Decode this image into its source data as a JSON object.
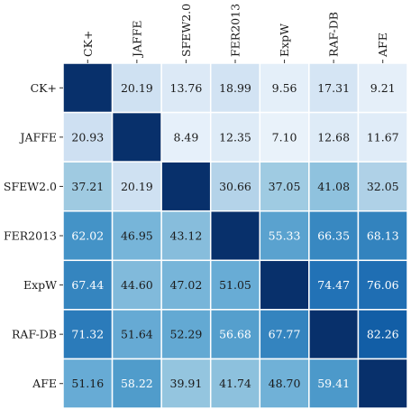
{
  "chart_data": {
    "type": "heatmap",
    "title": "",
    "xlabel": "",
    "ylabel": "",
    "columns": [
      "CK+",
      "JAFFE",
      "SFEW2.0",
      "FER2013",
      "ExpW",
      "RAF-DB",
      "AFE"
    ],
    "rows": [
      "CK+",
      "JAFFE",
      "SFEW2.0",
      "FER2013",
      "ExpW",
      "RAF-DB",
      "AFE"
    ],
    "values": [
      [
        null,
        20.19,
        13.76,
        18.99,
        9.56,
        17.31,
        9.21
      ],
      [
        20.93,
        null,
        8.49,
        12.35,
        7.1,
        12.68,
        11.67
      ],
      [
        37.21,
        20.19,
        null,
        30.66,
        37.05,
        41.08,
        32.05
      ],
      [
        62.02,
        46.95,
        43.12,
        null,
        55.33,
        66.35,
        68.13
      ],
      [
        67.44,
        44.6,
        47.02,
        51.05,
        null,
        74.47,
        76.06
      ],
      [
        71.32,
        51.64,
        52.29,
        56.68,
        67.77,
        null,
        82.26
      ],
      [
        51.16,
        58.22,
        39.91,
        41.74,
        48.7,
        59.41,
        null
      ]
    ],
    "colormap": "Blues",
    "diagonal_color": "#08306b",
    "x_tick_position": "top",
    "x_tick_rotation": "vertical",
    "grid": false,
    "legend": "none"
  }
}
